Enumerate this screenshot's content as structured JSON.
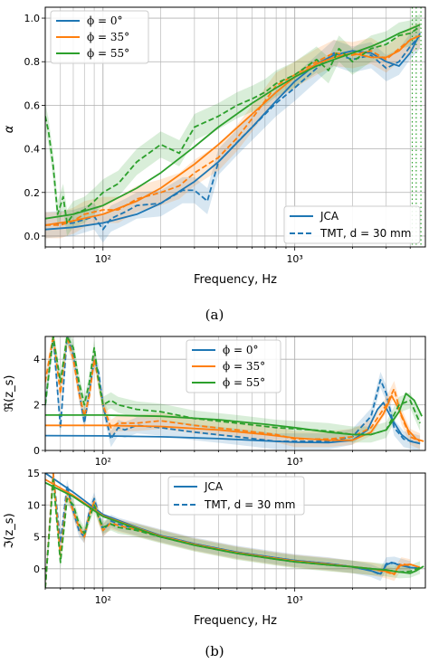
{
  "colors": {
    "blue": "#1f77b4",
    "orange": "#ff7f0e",
    "green": "#2ca02c",
    "grid": "#b0b0b0",
    "legend_edge": "#cccccc"
  },
  "captions": {
    "a": "(a)",
    "b": "(b)"
  },
  "chart_data": [
    {
      "id": "absorption",
      "type": "line",
      "xlabel": "Frequency, Hz",
      "ylabel": "α",
      "xscale": "log",
      "xlim": [
        50,
        4800
      ],
      "ylim": [
        -0.05,
        1.05
      ],
      "yticks": [
        "0.0",
        "0.2",
        "0.4",
        "0.6",
        "0.8",
        "1.0"
      ],
      "xticks": [
        "10²",
        "10³"
      ],
      "grid": true,
      "legend_phi": [
        "ϕ = 0°",
        "ϕ = 35°",
        "ϕ = 55°"
      ],
      "legend_model": [
        "JCA",
        "TMT, d = 30 mm"
      ],
      "legend_phi_position": "upper-left",
      "legend_model_position": "lower-right",
      "series": [
        {
          "name": "ϕ = 0°",
          "kind": "JCA",
          "color": "blue",
          "x": [
            50,
            70,
            100,
            150,
            200,
            300,
            400,
            600,
            800,
            1000,
            1300,
            1600,
            2000,
            2500,
            3000,
            3500,
            4000,
            4500
          ],
          "y": [
            0.03,
            0.04,
            0.06,
            0.1,
            0.15,
            0.25,
            0.34,
            0.5,
            0.62,
            0.71,
            0.79,
            0.83,
            0.85,
            0.84,
            0.8,
            0.78,
            0.84,
            0.93
          ]
        },
        {
          "name": "ϕ = 0°",
          "kind": "TMT",
          "color": "blue",
          "x": [
            50,
            70,
            90,
            100,
            110,
            130,
            150,
            200,
            260,
            300,
            350,
            400,
            500,
            600,
            800,
            1000,
            1300,
            1600,
            2000,
            2500,
            3000,
            3500,
            4000,
            4500
          ],
          "y": [
            0.05,
            0.06,
            0.09,
            0.03,
            0.08,
            0.11,
            0.14,
            0.15,
            0.21,
            0.21,
            0.16,
            0.34,
            0.43,
            0.5,
            0.61,
            0.68,
            0.77,
            0.84,
            0.81,
            0.83,
            0.77,
            0.8,
            0.87,
            0.92
          ]
        },
        {
          "name": "ϕ = 35°",
          "kind": "JCA",
          "color": "orange",
          "x": [
            50,
            70,
            100,
            150,
            200,
            300,
            400,
            600,
            800,
            1000,
            1300,
            1600,
            2000,
            2500,
            3000,
            3500,
            4000,
            4500
          ],
          "y": [
            0.05,
            0.07,
            0.1,
            0.16,
            0.22,
            0.33,
            0.42,
            0.56,
            0.66,
            0.73,
            0.79,
            0.82,
            0.84,
            0.82,
            0.82,
            0.85,
            0.9,
            0.92
          ]
        },
        {
          "name": "ϕ = 35°",
          "kind": "TMT",
          "color": "orange",
          "x": [
            50,
            60,
            70,
            80,
            100,
            120,
            150,
            200,
            250,
            300,
            400,
            500,
            600,
            700,
            800,
            1000,
            1300,
            1600,
            2000,
            2500,
            3000,
            3500,
            4000,
            4500
          ],
          "y": [
            0.05,
            0.05,
            0.07,
            0.1,
            0.12,
            0.12,
            0.17,
            0.2,
            0.23,
            0.29,
            0.36,
            0.45,
            0.54,
            0.62,
            0.69,
            0.74,
            0.8,
            0.84,
            0.83,
            0.85,
            0.81,
            0.86,
            0.9,
            0.92
          ]
        },
        {
          "name": "ϕ = 55°",
          "kind": "JCA",
          "color": "green",
          "x": [
            50,
            70,
            100,
            150,
            200,
            300,
            400,
            600,
            800,
            1000,
            1300,
            1600,
            2000,
            2500,
            3000,
            3500,
            4000,
            4500
          ],
          "y": [
            0.08,
            0.1,
            0.14,
            0.22,
            0.29,
            0.41,
            0.5,
            0.61,
            0.68,
            0.73,
            0.78,
            0.81,
            0.84,
            0.87,
            0.9,
            0.93,
            0.95,
            0.97
          ]
        },
        {
          "name": "ϕ = 55°",
          "kind": "TMT",
          "color": "green",
          "x": [
            50,
            52,
            55,
            58,
            62,
            65,
            70,
            80,
            90,
            100,
            120,
            150,
            200,
            250,
            300,
            400,
            500,
            600,
            700,
            800,
            1000,
            1300,
            1500,
            1700,
            2000,
            2500,
            3000,
            3500,
            4000,
            4500
          ],
          "y": [
            0.55,
            0.48,
            0.32,
            0.1,
            0.18,
            0.06,
            0.1,
            0.12,
            0.16,
            0.2,
            0.24,
            0.34,
            0.42,
            0.38,
            0.5,
            0.55,
            0.6,
            0.63,
            0.66,
            0.7,
            0.74,
            0.81,
            0.76,
            0.86,
            0.8,
            0.86,
            0.88,
            0.92,
            0.93,
            0.96
          ]
        }
      ],
      "vertical_dotted_lines": {
        "x": [
          4100,
          4300,
          4550
        ],
        "color": "green"
      }
    },
    {
      "id": "real_impedance",
      "type": "line",
      "ylabel": "ℜ(z_s)",
      "xscale": "log",
      "xlim": [
        50,
        4800
      ],
      "ylim": [
        0,
        5
      ],
      "yticks": [
        "0",
        "2",
        "4"
      ],
      "grid": true,
      "legend_phi": [
        "ϕ = 0°",
        "ϕ = 35°",
        "ϕ = 55°"
      ],
      "legend_phi_position": "upper-center",
      "series": [
        {
          "name": "ϕ = 0°",
          "kind": "JCA",
          "color": "blue",
          "x": [
            50,
            100,
            200,
            400,
            700,
            1000,
            1500,
            2000,
            2400,
            2700,
            2900,
            3200,
            3600,
            4000,
            4500
          ],
          "y": [
            0.65,
            0.64,
            0.6,
            0.52,
            0.42,
            0.36,
            0.34,
            0.45,
            0.9,
            1.8,
            2.1,
            1.4,
            0.7,
            0.4,
            0.3
          ]
        },
        {
          "name": "ϕ = 0°",
          "kind": "TMT",
          "color": "blue",
          "x": [
            50,
            55,
            60,
            65,
            70,
            75,
            80,
            85,
            90,
            95,
            100,
            105,
            110,
            120,
            130,
            150,
            200,
            300,
            500,
            800,
            1000,
            1500,
            2000,
            2500,
            2800,
            3000,
            3300,
            3700,
            4500
          ],
          "y": [
            2.0,
            5.0,
            1.0,
            5.0,
            4.2,
            2.6,
            1.2,
            2.6,
            4.0,
            3.4,
            2.0,
            1.2,
            0.5,
            1.0,
            0.9,
            1.1,
            1.0,
            0.8,
            0.6,
            0.4,
            0.4,
            0.4,
            0.6,
            1.5,
            3.1,
            2.5,
            1.0,
            0.5,
            0.3
          ]
        },
        {
          "name": "ϕ = 35°",
          "kind": "JCA",
          "color": "orange",
          "x": [
            50,
            100,
            200,
            400,
            700,
            1000,
            1500,
            2000,
            2500,
            2900,
            3200,
            3500,
            3900,
            4300,
            4700
          ],
          "y": [
            1.1,
            1.1,
            1.05,
            0.9,
            0.7,
            0.55,
            0.45,
            0.45,
            0.8,
            1.6,
            2.4,
            1.8,
            0.9,
            0.5,
            0.4
          ]
        },
        {
          "name": "ϕ = 35°",
          "kind": "TMT",
          "color": "orange",
          "x": [
            50,
            55,
            60,
            65,
            70,
            75,
            80,
            85,
            90,
            100,
            110,
            120,
            150,
            200,
            300,
            500,
            800,
            1000,
            1500,
            2000,
            2500,
            3000,
            3300,
            3600,
            4000,
            4500
          ],
          "y": [
            3.0,
            5.0,
            2.5,
            5.0,
            4.0,
            2.5,
            1.5,
            2.4,
            4.0,
            2.0,
            1.0,
            1.2,
            1.2,
            1.3,
            1.1,
            0.9,
            0.7,
            0.5,
            0.5,
            0.6,
            1.0,
            2.0,
            2.7,
            1.5,
            0.6,
            0.4
          ]
        },
        {
          "name": "ϕ = 55°",
          "kind": "JCA",
          "color": "green",
          "x": [
            50,
            100,
            200,
            400,
            700,
            1000,
            1500,
            2000,
            2500,
            3000,
            3500,
            3800,
            4200,
            4600
          ],
          "y": [
            1.55,
            1.55,
            1.5,
            1.35,
            1.15,
            1.0,
            0.8,
            0.7,
            0.7,
            0.9,
            1.7,
            2.5,
            2.2,
            1.5
          ]
        },
        {
          "name": "ϕ = 55°",
          "kind": "TMT",
          "color": "green",
          "x": [
            50,
            55,
            60,
            65,
            70,
            75,
            80,
            85,
            90,
            95,
            100,
            110,
            120,
            150,
            200,
            300,
            500,
            800,
            1000,
            1500,
            2000,
            2500,
            3000,
            3500,
            4000,
            4500
          ],
          "y": [
            2.0,
            5.0,
            3.0,
            5.0,
            4.5,
            3.0,
            2.0,
            3.0,
            4.5,
            3.0,
            2.0,
            2.2,
            2.0,
            1.8,
            1.7,
            1.4,
            1.2,
            1.0,
            0.95,
            0.85,
            0.7,
            0.7,
            0.9,
            2.0,
            2.2,
            1.2
          ]
        }
      ]
    },
    {
      "id": "imag_impedance",
      "type": "line",
      "xlabel": "Frequency, Hz",
      "ylabel": "ℑ(z_s)",
      "xscale": "log",
      "xlim": [
        50,
        4800
      ],
      "ylim": [
        -3,
        15
      ],
      "yticks": [
        "0",
        "5",
        "10",
        "15"
      ],
      "xticks": [
        "10²",
        "10³"
      ],
      "grid": true,
      "legend_model": [
        "JCA",
        "TMT, d = 30 mm"
      ],
      "legend_model_position": "upper-center",
      "series": [
        {
          "name": "ϕ = 0°",
          "kind": "JCA",
          "color": "blue",
          "x": [
            50,
            70,
            100,
            150,
            200,
            300,
            500,
            800,
            1000,
            1500,
            2000,
            2500,
            2800,
            3000,
            3200,
            3500,
            4000,
            4500
          ],
          "y": [
            15.0,
            12.0,
            8.5,
            6.5,
            5.2,
            3.9,
            2.6,
            1.7,
            1.3,
            0.8,
            0.3,
            -0.3,
            -0.8,
            0.6,
            1.0,
            0.6,
            0.2,
            0.1
          ]
        },
        {
          "name": "ϕ = 0°",
          "kind": "TMT",
          "color": "blue",
          "x": [
            50,
            55,
            60,
            65,
            70,
            75,
            80,
            85,
            90,
            95,
            100,
            110,
            120,
            150,
            200,
            300,
            500,
            800,
            1000,
            1500,
            2000,
            2500,
            2800,
            3000,
            3300,
            4000
          ],
          "y": [
            -3.0,
            15.0,
            4.0,
            13.0,
            9.0,
            6.0,
            5.0,
            9.0,
            11.0,
            8.5,
            6.0,
            7.5,
            7.0,
            6.2,
            5.2,
            3.9,
            2.6,
            1.7,
            1.3,
            0.8,
            0.3,
            -0.3,
            -0.9,
            0.8,
            0.9,
            0.2
          ]
        },
        {
          "name": "ϕ = 35°",
          "kind": "JCA",
          "color": "orange",
          "x": [
            50,
            70,
            100,
            150,
            200,
            300,
            500,
            800,
            1000,
            1500,
            2000,
            2500,
            3000,
            3300,
            3500,
            4000,
            4500
          ],
          "y": [
            14.0,
            11.5,
            8.3,
            6.4,
            5.1,
            3.8,
            2.5,
            1.6,
            1.2,
            0.7,
            0.3,
            0.0,
            -0.4,
            -0.8,
            0.5,
            0.7,
            0.2
          ]
        },
        {
          "name": "ϕ = 35°",
          "kind": "TMT",
          "color": "orange",
          "x": [
            50,
            55,
            60,
            65,
            70,
            75,
            80,
            85,
            90,
            95,
            100,
            110,
            120,
            150,
            200,
            300,
            500,
            800,
            1000,
            1500,
            2000,
            2500,
            3000,
            3300,
            3600,
            4000
          ],
          "y": [
            -3.0,
            15.0,
            2.0,
            12.0,
            9.0,
            6.5,
            5.0,
            8.5,
            10.5,
            8.0,
            6.0,
            7.2,
            6.8,
            6.1,
            5.1,
            3.8,
            2.5,
            1.6,
            1.2,
            0.7,
            0.3,
            0.0,
            -0.5,
            -0.9,
            0.8,
            0.5
          ]
        },
        {
          "name": "ϕ = 55°",
          "kind": "JCA",
          "color": "green",
          "x": [
            50,
            70,
            100,
            150,
            200,
            300,
            500,
            800,
            1000,
            1500,
            2000,
            2500,
            3000,
            3500,
            4000,
            4300,
            4700
          ],
          "y": [
            13.5,
            11.3,
            8.2,
            6.3,
            5.0,
            3.7,
            2.4,
            1.5,
            1.1,
            0.6,
            0.3,
            0.0,
            -0.2,
            -0.5,
            -0.7,
            -0.3,
            0.4
          ]
        },
        {
          "name": "ϕ = 55°",
          "kind": "TMT",
          "color": "green",
          "x": [
            50,
            55,
            60,
            65,
            70,
            75,
            80,
            85,
            90,
            95,
            100,
            110,
            120,
            150,
            200,
            300,
            500,
            800,
            1000,
            1500,
            2000,
            2500,
            3000,
            3500,
            4000,
            4500
          ],
          "y": [
            -3.0,
            14.0,
            1.0,
            11.0,
            10.0,
            7.0,
            5.5,
            8.0,
            10.0,
            8.0,
            6.5,
            7.0,
            6.5,
            6.0,
            5.0,
            3.7,
            2.4,
            1.5,
            1.1,
            0.6,
            0.3,
            0.0,
            -0.2,
            -0.5,
            -0.4,
            0.2
          ]
        }
      ]
    }
  ]
}
